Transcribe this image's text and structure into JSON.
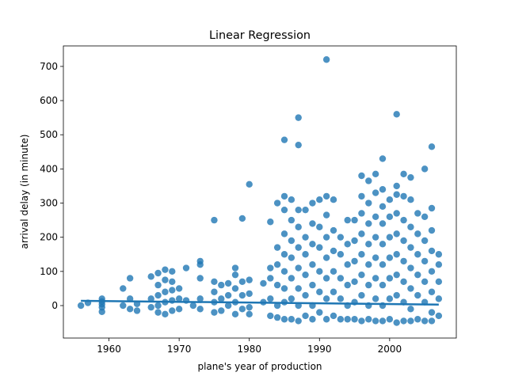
{
  "chart_data": {
    "type": "scatter",
    "title": "Linear Regression",
    "xlabel": "plane's year of production",
    "ylabel": "arrival delay (in minute)",
    "xlim": [
      1953.5,
      2009.5
    ],
    "ylim": [
      -95,
      760
    ],
    "xticks": [
      1960,
      1970,
      1980,
      1990,
      2000
    ],
    "yticks": [
      0,
      100,
      200,
      300,
      400,
      500,
      600,
      700
    ],
    "grid": false,
    "marker_color": "#1f77b4",
    "line_color": "#1f77b4",
    "regression_line": {
      "x": [
        1956,
        2007
      ],
      "y": [
        14,
        3
      ]
    },
    "points": [
      [
        1956,
        0
      ],
      [
        1957,
        8
      ],
      [
        1959,
        -18
      ],
      [
        1959,
        -5
      ],
      [
        1959,
        4
      ],
      [
        1959,
        12
      ],
      [
        1959,
        20
      ],
      [
        1962,
        50
      ],
      [
        1962,
        0
      ],
      [
        1963,
        80
      ],
      [
        1963,
        20
      ],
      [
        1963,
        -10
      ],
      [
        1964,
        5
      ],
      [
        1964,
        -15
      ],
      [
        1966,
        85
      ],
      [
        1966,
        20
      ],
      [
        1966,
        -5
      ],
      [
        1967,
        95
      ],
      [
        1967,
        60
      ],
      [
        1967,
        30
      ],
      [
        1967,
        0
      ],
      [
        1967,
        -20
      ],
      [
        1968,
        105
      ],
      [
        1968,
        75
      ],
      [
        1968,
        40
      ],
      [
        1968,
        10
      ],
      [
        1968,
        -25
      ],
      [
        1969,
        100
      ],
      [
        1969,
        70
      ],
      [
        1969,
        45
      ],
      [
        1969,
        15
      ],
      [
        1969,
        -15
      ],
      [
        1970,
        50
      ],
      [
        1970,
        20
      ],
      [
        1970,
        -10
      ],
      [
        1971,
        110
      ],
      [
        1971,
        15
      ],
      [
        1972,
        0
      ],
      [
        1973,
        130
      ],
      [
        1973,
        120
      ],
      [
        1973,
        80
      ],
      [
        1973,
        20
      ],
      [
        1973,
        -10
      ],
      [
        1975,
        250
      ],
      [
        1975,
        70
      ],
      [
        1975,
        40
      ],
      [
        1975,
        10
      ],
      [
        1975,
        -20
      ],
      [
        1976,
        60
      ],
      [
        1976,
        20
      ],
      [
        1976,
        -15
      ],
      [
        1977,
        65
      ],
      [
        1977,
        30
      ],
      [
        1977,
        0
      ],
      [
        1978,
        110
      ],
      [
        1978,
        90
      ],
      [
        1978,
        50
      ],
      [
        1978,
        10
      ],
      [
        1978,
        -25
      ],
      [
        1979,
        255
      ],
      [
        1979,
        70
      ],
      [
        1979,
        30
      ],
      [
        1979,
        -10
      ],
      [
        1980,
        355
      ],
      [
        1980,
        75
      ],
      [
        1980,
        35
      ],
      [
        1980,
        -5
      ],
      [
        1980,
        -25
      ],
      [
        1982,
        65
      ],
      [
        1982,
        10
      ],
      [
        1983,
        245
      ],
      [
        1983,
        110
      ],
      [
        1983,
        80
      ],
      [
        1983,
        20
      ],
      [
        1983,
        -30
      ],
      [
        1984,
        300
      ],
      [
        1984,
        170
      ],
      [
        1984,
        120
      ],
      [
        1984,
        60
      ],
      [
        1984,
        0
      ],
      [
        1984,
        -35
      ],
      [
        1985,
        485
      ],
      [
        1985,
        320
      ],
      [
        1985,
        280
      ],
      [
        1985,
        210
      ],
      [
        1985,
        150
      ],
      [
        1985,
        100
      ],
      [
        1985,
        50
      ],
      [
        1985,
        10
      ],
      [
        1985,
        -40
      ],
      [
        1986,
        310
      ],
      [
        1986,
        250
      ],
      [
        1986,
        190
      ],
      [
        1986,
        140
      ],
      [
        1986,
        80
      ],
      [
        1986,
        20
      ],
      [
        1986,
        -40
      ],
      [
        1987,
        550
      ],
      [
        1987,
        470
      ],
      [
        1987,
        280
      ],
      [
        1987,
        230
      ],
      [
        1987,
        170
      ],
      [
        1987,
        110
      ],
      [
        1987,
        50
      ],
      [
        1987,
        0
      ],
      [
        1987,
        -45
      ],
      [
        1988,
        280
      ],
      [
        1988,
        200
      ],
      [
        1988,
        150
      ],
      [
        1988,
        90
      ],
      [
        1988,
        30
      ],
      [
        1988,
        -30
      ],
      [
        1989,
        300
      ],
      [
        1989,
        240
      ],
      [
        1989,
        180
      ],
      [
        1989,
        120
      ],
      [
        1989,
        60
      ],
      [
        1989,
        0
      ],
      [
        1989,
        -40
      ],
      [
        1990,
        310
      ],
      [
        1990,
        230
      ],
      [
        1990,
        170
      ],
      [
        1990,
        100
      ],
      [
        1990,
        40
      ],
      [
        1990,
        -20
      ],
      [
        1991,
        720
      ],
      [
        1991,
        320
      ],
      [
        1991,
        265
      ],
      [
        1991,
        200
      ],
      [
        1991,
        140
      ],
      [
        1991,
        80
      ],
      [
        1991,
        20
      ],
      [
        1991,
        -40
      ],
      [
        1992,
        310
      ],
      [
        1992,
        220
      ],
      [
        1992,
        160
      ],
      [
        1992,
        100
      ],
      [
        1992,
        40
      ],
      [
        1992,
        -30
      ],
      [
        1993,
        200
      ],
      [
        1993,
        150
      ],
      [
        1993,
        80
      ],
      [
        1993,
        20
      ],
      [
        1993,
        -40
      ],
      [
        1994,
        250
      ],
      [
        1994,
        180
      ],
      [
        1994,
        120
      ],
      [
        1994,
        60
      ],
      [
        1994,
        0
      ],
      [
        1994,
        -40
      ],
      [
        1995,
        250
      ],
      [
        1995,
        190
      ],
      [
        1995,
        130
      ],
      [
        1995,
        70
      ],
      [
        1995,
        10
      ],
      [
        1995,
        -40
      ],
      [
        1996,
        380
      ],
      [
        1996,
        320
      ],
      [
        1996,
        270
      ],
      [
        1996,
        210
      ],
      [
        1996,
        150
      ],
      [
        1996,
        90
      ],
      [
        1996,
        30
      ],
      [
        1996,
        -45
      ],
      [
        1997,
        365
      ],
      [
        1997,
        300
      ],
      [
        1997,
        240
      ],
      [
        1997,
        180
      ],
      [
        1997,
        120
      ],
      [
        1997,
        60
      ],
      [
        1997,
        0
      ],
      [
        1997,
        -40
      ],
      [
        1998,
        385
      ],
      [
        1998,
        330
      ],
      [
        1998,
        260
      ],
      [
        1998,
        200
      ],
      [
        1998,
        140
      ],
      [
        1998,
        80
      ],
      [
        1998,
        20
      ],
      [
        1998,
        -45
      ],
      [
        1999,
        430
      ],
      [
        1999,
        340
      ],
      [
        1999,
        290
      ],
      [
        1999,
        240
      ],
      [
        1999,
        180
      ],
      [
        1999,
        120
      ],
      [
        1999,
        60
      ],
      [
        1999,
        0
      ],
      [
        1999,
        -45
      ],
      [
        2000,
        310
      ],
      [
        2000,
        260
      ],
      [
        2000,
        200
      ],
      [
        2000,
        140
      ],
      [
        2000,
        80
      ],
      [
        2000,
        20
      ],
      [
        2000,
        -40
      ],
      [
        2001,
        560
      ],
      [
        2001,
        350
      ],
      [
        2001,
        325
      ],
      [
        2001,
        270
      ],
      [
        2001,
        210
      ],
      [
        2001,
        150
      ],
      [
        2001,
        90
      ],
      [
        2001,
        30
      ],
      [
        2001,
        -50
      ],
      [
        2002,
        385
      ],
      [
        2002,
        320
      ],
      [
        2002,
        250
      ],
      [
        2002,
        190
      ],
      [
        2002,
        130
      ],
      [
        2002,
        70
      ],
      [
        2002,
        10
      ],
      [
        2002,
        -45
      ],
      [
        2003,
        375
      ],
      [
        2003,
        310
      ],
      [
        2003,
        230
      ],
      [
        2003,
        170
      ],
      [
        2003,
        110
      ],
      [
        2003,
        50
      ],
      [
        2003,
        -10
      ],
      [
        2003,
        -45
      ],
      [
        2004,
        270
      ],
      [
        2004,
        210
      ],
      [
        2004,
        150
      ],
      [
        2004,
        90
      ],
      [
        2004,
        30
      ],
      [
        2004,
        -40
      ],
      [
        2005,
        400
      ],
      [
        2005,
        260
      ],
      [
        2005,
        190
      ],
      [
        2005,
        130
      ],
      [
        2005,
        70
      ],
      [
        2005,
        10
      ],
      [
        2005,
        -45
      ],
      [
        2006,
        465
      ],
      [
        2006,
        285
      ],
      [
        2006,
        220
      ],
      [
        2006,
        160
      ],
      [
        2006,
        100
      ],
      [
        2006,
        40
      ],
      [
        2006,
        -20
      ],
      [
        2006,
        -45
      ],
      [
        2007,
        150
      ],
      [
        2007,
        120
      ],
      [
        2007,
        70
      ],
      [
        2007,
        20
      ],
      [
        2007,
        -30
      ]
    ]
  }
}
